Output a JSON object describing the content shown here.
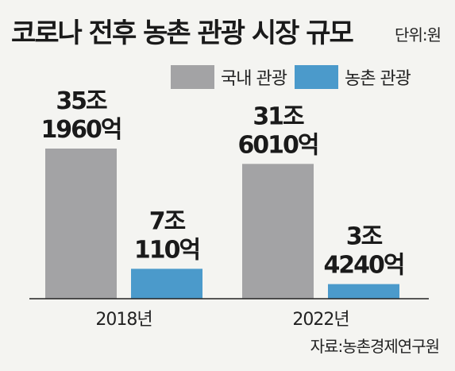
{
  "title": "코로나 전후 농촌 관광 시장 규모",
  "unit": "단위:원",
  "source": "자료:농촌경제연구원",
  "legend": [
    {
      "label": "국내 관광",
      "color": "#a3a3a5"
    },
    {
      "label": "농촌 관광",
      "color": "#4b9acb"
    }
  ],
  "chart_data": {
    "type": "bar",
    "categories": [
      "2018년",
      "2022년"
    ],
    "series": [
      {
        "name": "국내 관광",
        "color": "#a3a3a5",
        "values": [
          351960,
          316010
        ],
        "labels": [
          [
            "35조",
            "1960억"
          ],
          [
            "31조",
            "6010억"
          ]
        ]
      },
      {
        "name": "농촌 관광",
        "color": "#4b9acb",
        "values": [
          70110,
          34240
        ],
        "labels": [
          [
            "7조",
            "110억"
          ],
          [
            "3조",
            "4240억"
          ]
        ]
      }
    ],
    "value_unit": "억원",
    "legend_position": "top-right",
    "grid": false
  }
}
